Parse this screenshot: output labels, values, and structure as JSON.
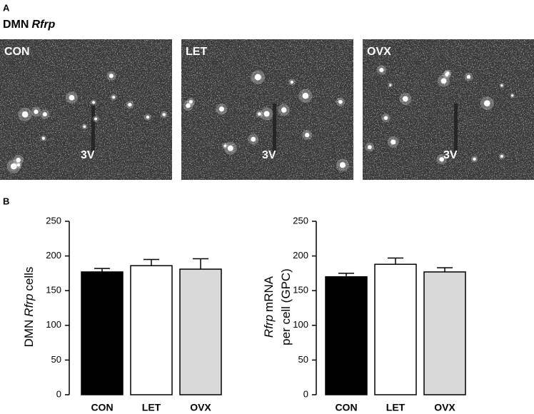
{
  "panel_a": {
    "label": "A",
    "title": [
      {
        "text": "DMN",
        "italic": false
      },
      {
        "text": "Rfrp",
        "italic": true
      }
    ],
    "images": [
      {
        "label": "CON",
        "marker": "3V"
      },
      {
        "label": "LET",
        "marker": "3V"
      },
      {
        "label": "OVX",
        "marker": "3V"
      }
    ]
  },
  "panel_b": {
    "label": "B"
  },
  "chart_data": [
    {
      "type": "bar",
      "ylabel": [
        [
          {
            "text": "DMN",
            "italic": false
          },
          {
            "text": "Rfrp",
            "italic": true
          },
          {
            "text": "cells",
            "italic": false
          }
        ]
      ],
      "categories": [
        "CON",
        "LET",
        "OVX"
      ],
      "values": [
        177,
        186,
        181
      ],
      "errors": [
        5,
        9,
        15
      ],
      "colors": [
        "#000000",
        "#ffffff",
        "#d9d9d9"
      ],
      "ylim": [
        0,
        250
      ],
      "yticks": [
        0,
        50,
        100,
        150,
        200,
        250
      ]
    },
    {
      "type": "bar",
      "ylabel": [
        [
          {
            "text": "Rfrp",
            "italic": true
          },
          {
            "text": "mRNA",
            "italic": false
          }
        ],
        [
          {
            "text": "per cell (GPC)",
            "italic": false
          }
        ]
      ],
      "categories": [
        "CON",
        "LET",
        "OVX"
      ],
      "values": [
        170,
        188,
        177
      ],
      "errors": [
        5,
        9,
        6
      ],
      "colors": [
        "#000000",
        "#ffffff",
        "#d9d9d9"
      ],
      "ylim": [
        0,
        250
      ],
      "yticks": [
        0,
        50,
        100,
        150,
        200,
        250
      ]
    }
  ]
}
